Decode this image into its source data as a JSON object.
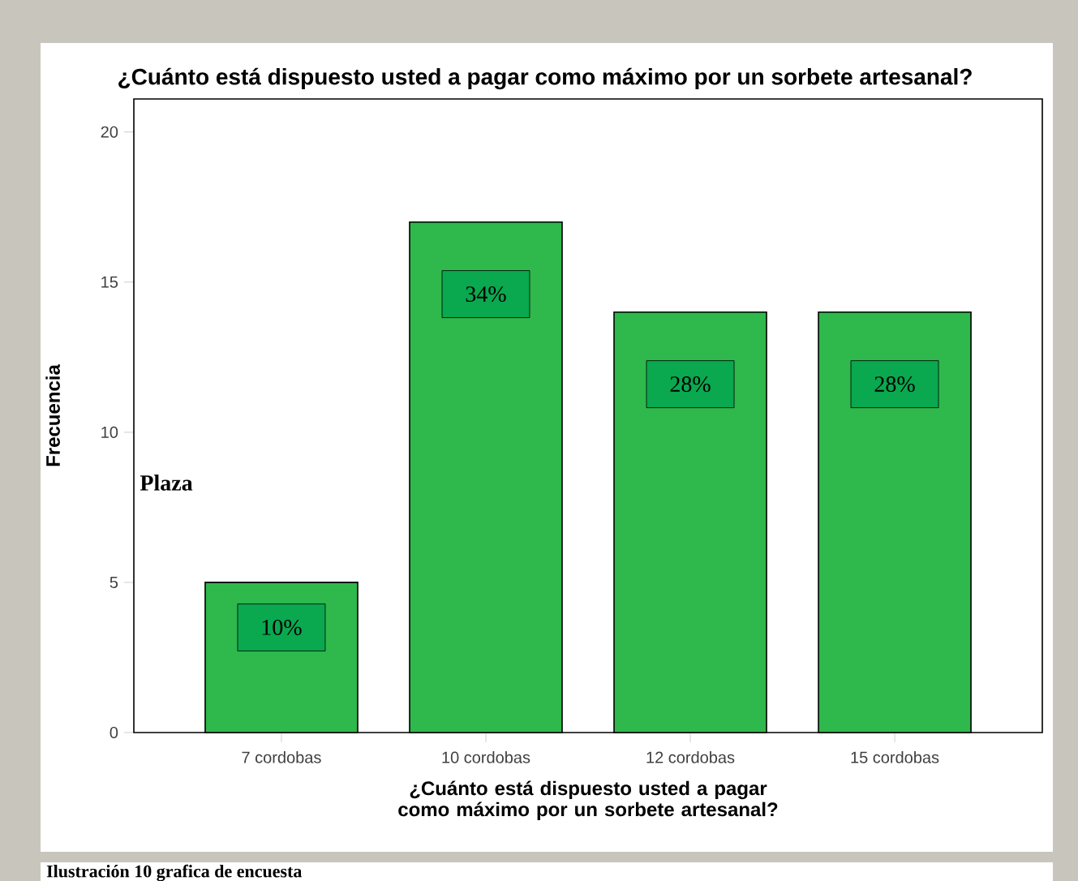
{
  "chart_data": {
    "type": "bar",
    "title": "¿Cuánto está dispuesto usted a pagar como máximo por un sorbete artesanal?",
    "xlabel": "¿Cuánto está dispuesto usted a pagar como máximo por un sorbete artesanal?",
    "ylabel": "Frecuencia",
    "categories": [
      "7 cordobas",
      "10 cordobas",
      "12 cordobas",
      "15 cordobas"
    ],
    "values": [
      5,
      17,
      14,
      14
    ],
    "color": "#2fb84c",
    "ylim": [
      0,
      21.1
    ],
    "yticks": [
      0,
      5,
      10,
      15,
      20
    ],
    "grid": false,
    "annotations": [
      "10%",
      "34%",
      "28%",
      "28%",
      "Plaza",
      "Ilustración 10 grafica de encuesta"
    ]
  }
}
